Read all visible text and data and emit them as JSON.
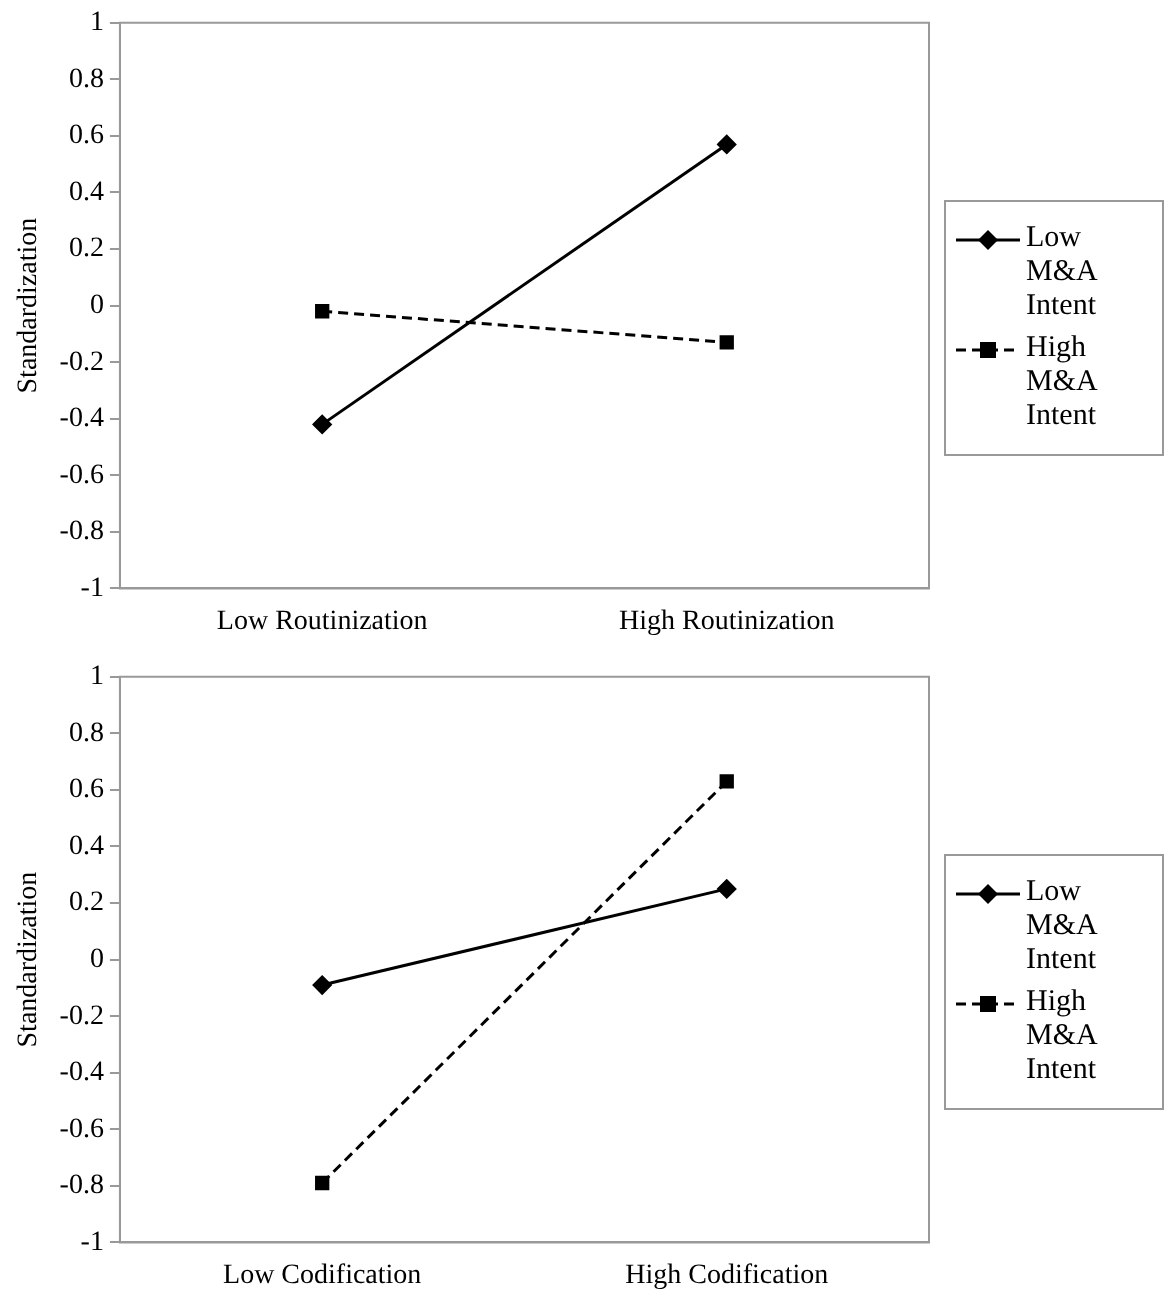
{
  "chart_data": [
    {
      "type": "line",
      "ylabel": "Standardization",
      "categories": [
        "Low Routinization",
        "High Routinization"
      ],
      "ylim": [
        -1,
        1
      ],
      "yticks": [
        -1,
        -0.8,
        -0.6,
        -0.4,
        -0.2,
        0,
        0.2,
        0.4,
        0.6,
        0.8,
        1
      ],
      "grid": false,
      "legend": "right",
      "series": [
        {
          "name": "Low M&A Intent",
          "color": "#000000",
          "values": [
            -0.42,
            0.57
          ],
          "marker": "diamond",
          "line_style": "solid"
        },
        {
          "name": "High M&A Intent",
          "color": "#000000",
          "values": [
            -0.02,
            -0.13
          ],
          "marker": "square",
          "line_style": "dashed"
        }
      ]
    },
    {
      "type": "line",
      "ylabel": "Standardization",
      "categories": [
        "Low Codification",
        "High Codification"
      ],
      "ylim": [
        -1,
        1
      ],
      "yticks": [
        -1,
        -0.8,
        -0.6,
        -0.4,
        -0.2,
        0,
        0.2,
        0.4,
        0.6,
        0.8,
        1
      ],
      "grid": false,
      "legend": "right",
      "series": [
        {
          "name": "Low M&A Intent",
          "color": "#000000",
          "values": [
            -0.09,
            0.25
          ],
          "marker": "diamond",
          "line_style": "solid"
        },
        {
          "name": "High M&A Intent",
          "color": "#000000",
          "values": [
            -0.79,
            0.63
          ],
          "marker": "square",
          "line_style": "dashed"
        }
      ]
    }
  ]
}
